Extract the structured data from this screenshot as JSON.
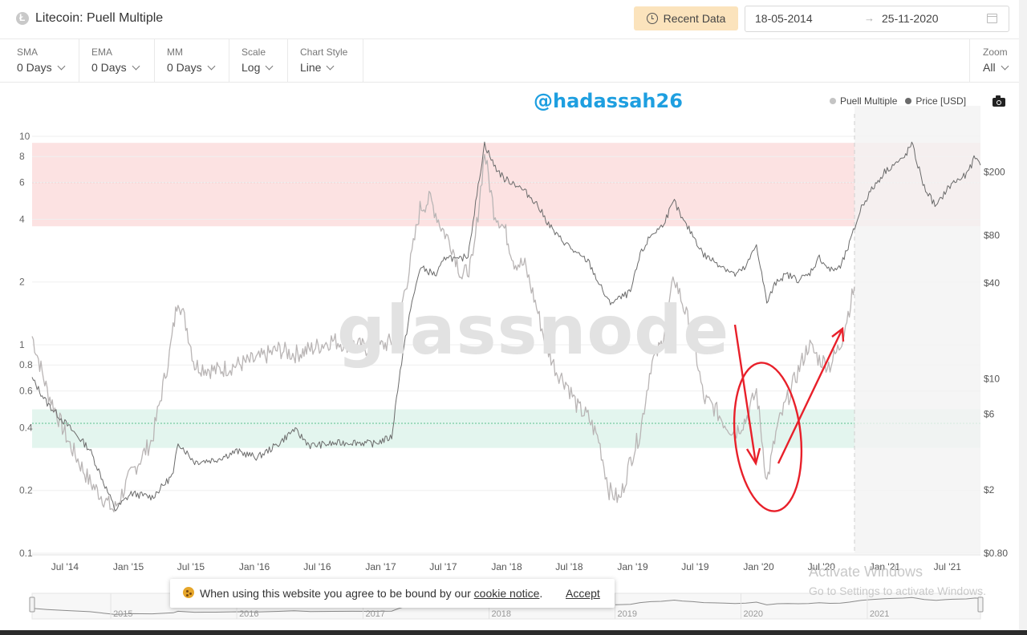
{
  "header": {
    "title": "Litecoin: Puell Multiple",
    "recent_button": "Recent Data",
    "date_from": "18-05-2014",
    "date_arrow": "→",
    "date_to": "25-11-2020"
  },
  "toolbar": [
    {
      "label": "SMA",
      "value": "0 Days"
    },
    {
      "label": "EMA",
      "value": "0 Days"
    },
    {
      "label": "MM",
      "value": "0 Days"
    },
    {
      "label": "Scale",
      "value": "Log"
    },
    {
      "label": "Chart Style",
      "value": "Line"
    }
  ],
  "zoom": {
    "label": "Zoom",
    "value": "All"
  },
  "overlay": {
    "handle": "@hadassah26",
    "watermark": "glassnode",
    "activate_title": "Activate Windows",
    "activate_sub": "Go to Settings to activate Windows."
  },
  "cookie": {
    "text_before": "When using this website you agree to be bound by our ",
    "link": "cookie notice",
    "text_after": ".",
    "accept": "Accept"
  },
  "colors": {
    "puell": "#b9b5b5",
    "price": "#6b6b6b",
    "top_band": "#fce2e2",
    "bottom_band": "#e3f5ee",
    "annotation": "#e8202a",
    "handle": "#1e9fe0",
    "recent_button_bg": "#fbe3bc"
  },
  "chart_data": {
    "type": "line",
    "title": "Litecoin: Puell Multiple",
    "y_scale": "log",
    "x_ticks": [
      "Jul '14",
      "Jan '15",
      "Jul '15",
      "Jan '16",
      "Jul '16",
      "Jan '17",
      "Jul '17",
      "Jan '18",
      "Jul '18",
      "Jan '19",
      "Jul '19",
      "Jan '20",
      "Jul '20",
      "Jan '21",
      "Jul '21"
    ],
    "left_ticks": [
      "10",
      "8",
      "6",
      "4",
      "2",
      "1",
      "0.8",
      "0.6",
      "0.4",
      "0.2",
      "0.1"
    ],
    "left_tick_values": [
      10,
      8,
      6,
      4,
      2,
      1,
      0.8,
      0.6,
      0.4,
      0.2,
      0.1
    ],
    "left_ylim": [
      0.1,
      10
    ],
    "right_ticks": [
      "$200",
      "$80",
      "$40",
      "$10",
      "$6",
      "$2",
      "$0.80"
    ],
    "right_tick_values": [
      200,
      80,
      40,
      10,
      6,
      2,
      0.8
    ],
    "right_ylim": [
      0.8,
      200
    ],
    "top_band": {
      "from": 3.7,
      "to": 9.3,
      "line": 6
    },
    "bottom_band": {
      "from": 0.32,
      "to": 0.49,
      "line": 0.42
    },
    "navigator_labels": [
      "2015",
      "2016",
      "2017",
      "2018",
      "2019",
      "2020",
      "2021"
    ],
    "series": [
      {
        "name": "Puell Multiple",
        "x": [
          "2014-05-18",
          "2014-07-01",
          "2014-09-01",
          "2014-11-01",
          "2015-01-10",
          "2015-03-01",
          "2015-05-01",
          "2015-06-20",
          "2015-07-15",
          "2015-08-10",
          "2015-09-01",
          "2015-11-01",
          "2016-01-01",
          "2016-03-01",
          "2016-05-01",
          "2016-06-15",
          "2016-08-01",
          "2016-10-01",
          "2016-12-01",
          "2017-02-01",
          "2017-04-01",
          "2017-05-15",
          "2017-06-15",
          "2017-07-15",
          "2017-08-15",
          "2017-09-15",
          "2017-10-15",
          "2017-11-15",
          "2017-12-19",
          "2018-01-15",
          "2018-02-15",
          "2018-03-15",
          "2018-04-15",
          "2018-05-15",
          "2018-06-15",
          "2018-07-15",
          "2018-08-15",
          "2018-09-15",
          "2018-10-15",
          "2018-11-15",
          "2018-12-15",
          "2019-01-15",
          "2019-02-15",
          "2019-03-15",
          "2019-04-15",
          "2019-05-15",
          "2019-06-22",
          "2019-07-15",
          "2019-08-15",
          "2019-09-15",
          "2019-10-15",
          "2019-11-15",
          "2019-12-15",
          "2020-01-15",
          "2020-02-15",
          "2020-03-16",
          "2020-04-15",
          "2020-05-15",
          "2020-06-15",
          "2020-07-15",
          "2020-08-15",
          "2020-09-15",
          "2020-10-15",
          "2020-11-25"
        ],
        "values": [
          1.1,
          0.6,
          0.34,
          0.22,
          0.16,
          0.24,
          0.35,
          0.9,
          1.7,
          1.2,
          0.8,
          0.75,
          0.8,
          0.85,
          0.95,
          0.9,
          0.95,
          1.05,
          1.0,
          0.95,
          1.05,
          2.3,
          4.5,
          5.0,
          3.7,
          3.0,
          2.1,
          2.5,
          8.4,
          4.4,
          3.6,
          2.5,
          2.4,
          1.6,
          1.0,
          0.75,
          0.65,
          0.5,
          0.45,
          0.35,
          0.2,
          0.18,
          0.28,
          0.38,
          0.8,
          1.0,
          2.1,
          1.6,
          1.1,
          0.55,
          0.5,
          0.42,
          0.38,
          0.44,
          0.6,
          0.22,
          0.4,
          0.55,
          0.75,
          1.0,
          0.85,
          0.8,
          1.0,
          1.9
        ]
      },
      {
        "name": "Price [USD]",
        "x": [
          "2014-05-18",
          "2014-07-01",
          "2014-09-01",
          "2014-11-01",
          "2015-01-14",
          "2015-03-01",
          "2015-05-01",
          "2015-07-01",
          "2015-07-15",
          "2015-09-01",
          "2015-11-01",
          "2016-01-01",
          "2016-03-01",
          "2016-05-01",
          "2016-06-15",
          "2016-08-01",
          "2016-10-01",
          "2016-12-01",
          "2017-02-01",
          "2017-03-25",
          "2017-04-15",
          "2017-05-15",
          "2017-06-15",
          "2017-08-01",
          "2017-09-01",
          "2017-10-01",
          "2017-11-01",
          "2017-12-19",
          "2018-01-15",
          "2018-02-15",
          "2018-03-15",
          "2018-04-15",
          "2018-05-15",
          "2018-06-15",
          "2018-07-15",
          "2018-08-15",
          "2018-09-15",
          "2018-10-15",
          "2018-11-15",
          "2018-12-15",
          "2019-01-15",
          "2019-02-15",
          "2019-03-15",
          "2019-04-15",
          "2019-05-15",
          "2019-06-22",
          "2019-07-15",
          "2019-08-15",
          "2019-09-15",
          "2019-10-15",
          "2019-11-15",
          "2019-12-15",
          "2020-01-15",
          "2020-02-15",
          "2020-03-16",
          "2020-04-15",
          "2020-05-15",
          "2020-06-15",
          "2020-07-15",
          "2020-08-15",
          "2020-09-15",
          "2020-10-15",
          "2020-11-10",
          "2020-12-15",
          "2021-01-10",
          "2021-02-20",
          "2021-03-15",
          "2021-04-15",
          "2021-05-10",
          "2021-06-15",
          "2021-07-20",
          "2021-08-15",
          "2021-09-05",
          "2021-10-15",
          "2021-11-10",
          "2021-11-25"
        ],
        "values": [
          10,
          7,
          5,
          3.6,
          1.5,
          1.9,
          1.8,
          2.5,
          4.0,
          3.0,
          3.1,
          3.5,
          3.2,
          3.9,
          4.8,
          3.8,
          3.9,
          4.0,
          3.9,
          4.3,
          10,
          25,
          50,
          45,
          60,
          55,
          60,
          300,
          220,
          180,
          170,
          150,
          130,
          100,
          80,
          70,
          60,
          55,
          40,
          30,
          32,
          35,
          60,
          80,
          90,
          130,
          100,
          80,
          60,
          55,
          50,
          45,
          50,
          70,
          30,
          42,
          45,
          42,
          45,
          58,
          48,
          50,
          70,
          120,
          150,
          200,
          220,
          240,
          300,
          160,
          120,
          150,
          170,
          190,
          250,
          220
        ]
      }
    ]
  }
}
